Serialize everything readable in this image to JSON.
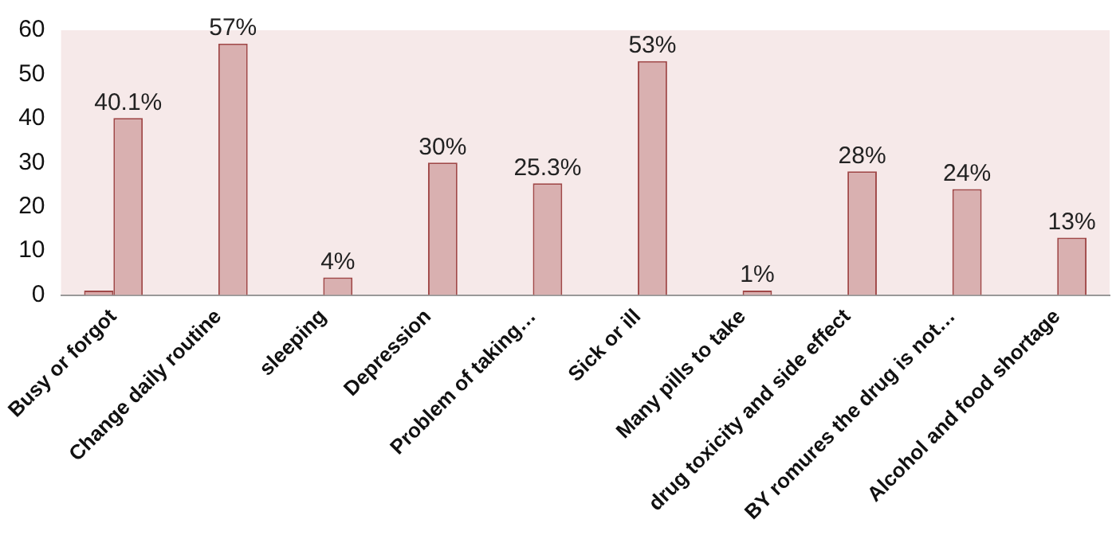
{
  "chart_data": {
    "type": "bar",
    "categories": [
      "Busy or forgot",
      "Change daily routine",
      "sleeping",
      "Depression",
      "Problem of taking…",
      "Sick or ill",
      "Many pills to take",
      "drug toxicity and side effect",
      "BY romures the drug is not…",
      "Alcohol and food shortage"
    ],
    "series": [
      {
        "color": "#d9a9a9",
        "values": [
          1,
          null,
          null,
          null,
          null,
          null,
          null,
          null,
          null,
          null
        ],
        "value_labels": [
          null,
          null,
          null,
          null,
          null,
          null,
          null,
          null,
          null,
          null
        ]
      },
      {
        "color": "#d9b0b0",
        "values": [
          40.1,
          57,
          4,
          30,
          25.3,
          53,
          1,
          28,
          24,
          13
        ],
        "value_labels": [
          "40.1%",
          "57%",
          "4%",
          "30%",
          "25.3%",
          "53%",
          "1%",
          "28%",
          "24%",
          "13%"
        ]
      }
    ],
    "ylim": [
      0,
      60
    ],
    "yticks": [
      0,
      10,
      20,
      30,
      40,
      50,
      60
    ],
    "grid": false,
    "legend": false
  }
}
